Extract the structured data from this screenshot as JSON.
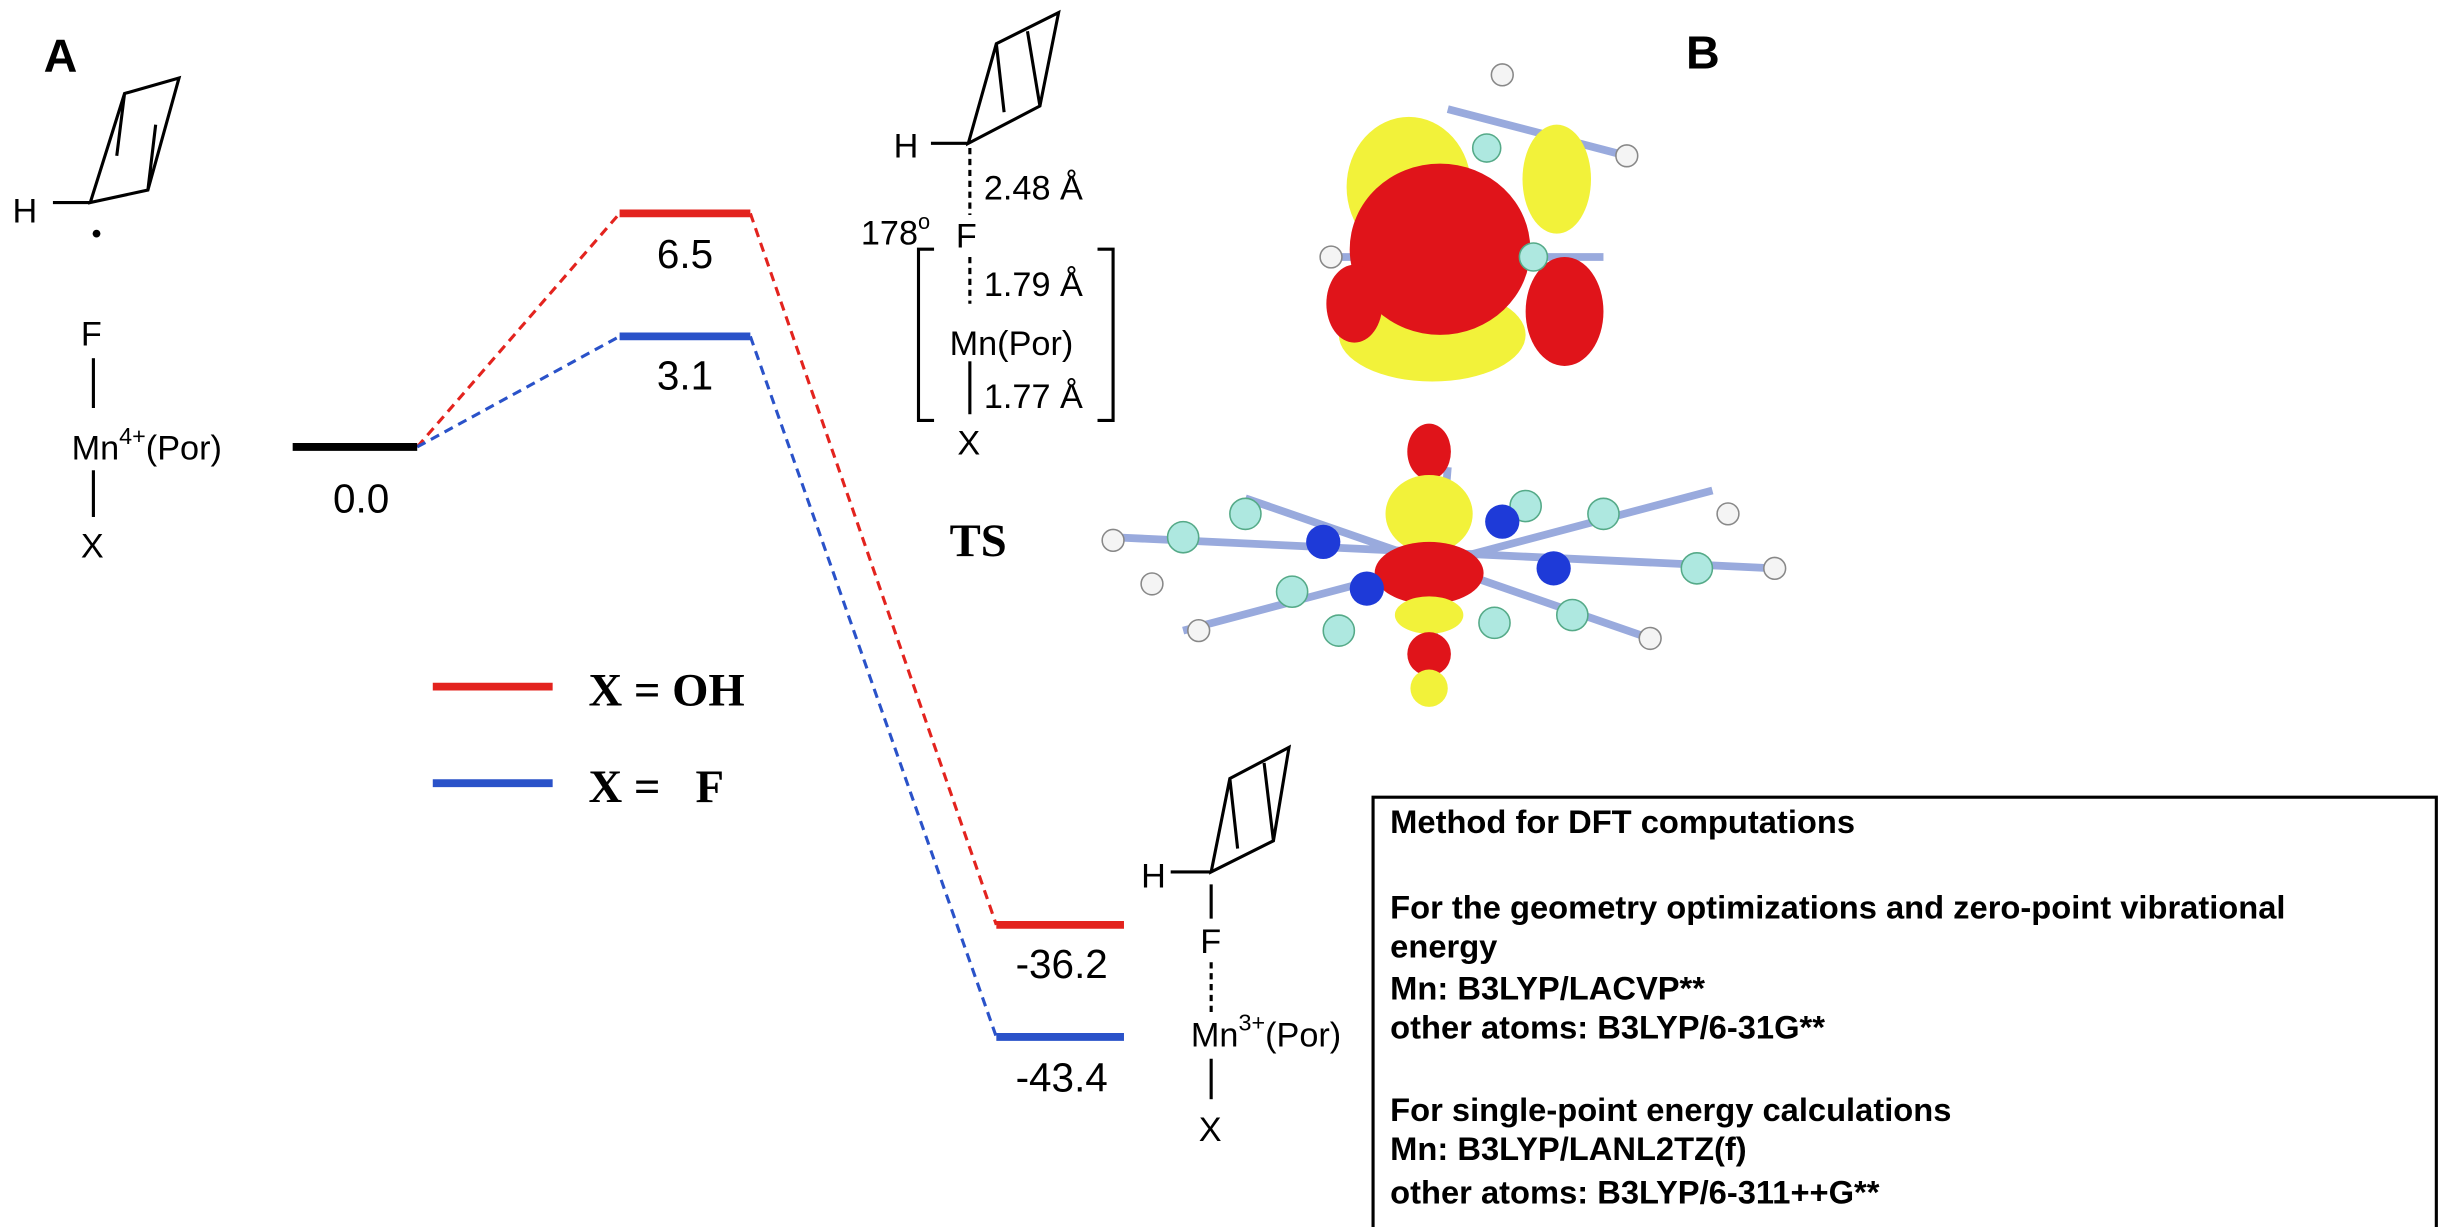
{
  "panel_a": {
    "label": "A",
    "reactant": {
      "radical_h": "H",
      "top": "F",
      "metal": "Mn",
      "charge": "4+",
      "ligand": "(Por)",
      "bottom": "X"
    },
    "levels": {
      "start": "0.0",
      "ts_oh": "6.5",
      "ts_f": "3.1",
      "product_oh": "-36.2",
      "product_f": "-43.4"
    },
    "legend": [
      {
        "label": "X = OH",
        "color": "#e3231e"
      },
      {
        "label": "X =   F",
        "color": "#2a52c9"
      }
    ],
    "ts": {
      "h": "H",
      "h_f_distance": "2.48 Å",
      "angle": "178",
      "degree": "o",
      "f": "F",
      "f_mn_distance": "1.79 Å",
      "metal": "Mn(Por)",
      "mn_x_distance": "1.77 Å",
      "x": "X",
      "label": "TS"
    },
    "product": {
      "h": "H",
      "f": "F",
      "metal": "Mn",
      "charge": "3+",
      "ligand": "(Por)",
      "x": "X"
    }
  },
  "panel_b": {
    "label": "B"
  },
  "method_box": {
    "lines": [
      "Method for DFT computations",
      "For the geometry optimizations and zero-point vibrational",
      "energy",
      "Mn: B3LYP/LACVP**",
      "other atoms: B3LYP/6-31G**",
      "For single-point energy calculations",
      "Mn: B3LYP/LANL2TZ(f)",
      "other atoms: B3LYP/6-311++G**"
    ]
  }
}
